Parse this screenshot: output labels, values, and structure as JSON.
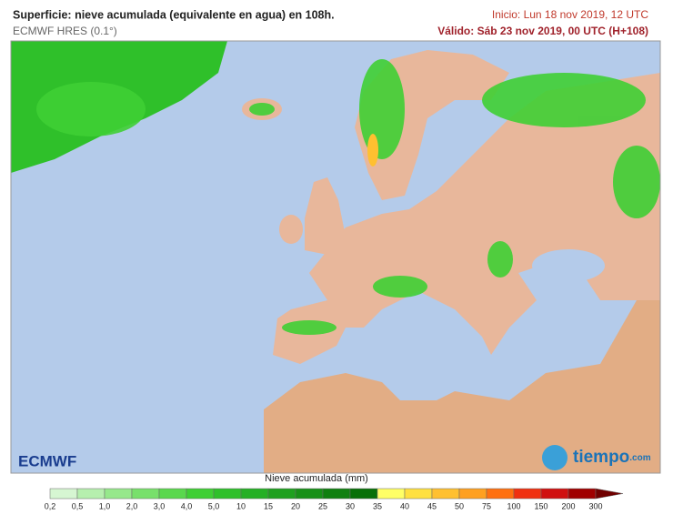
{
  "header": {
    "title": "Superficie: nieve acumulada (equivalente en agua) en 108h.",
    "model": "ECMWF HRES (0.1°)",
    "start": "Inicio: Lun 18 nov 2019, 12 UTC",
    "valid": "Válido: Sáb 23 nov 2019, 00 UTC (H+108)"
  },
  "logos": {
    "left": "ECMWF",
    "right": "tiempo",
    "right_suffix": ".com"
  },
  "legend": {
    "title": "Nieve acumulada (mm)",
    "labels": [
      "0,2",
      "0,5",
      "1,0",
      "2,0",
      "3,0",
      "4,0",
      "5,0",
      "10",
      "15",
      "20",
      "25",
      "30",
      "35",
      "40",
      "45",
      "50",
      "75",
      "100",
      "150",
      "200",
      "300"
    ],
    "colors": [
      "#d6f6d2",
      "#b6efae",
      "#96e88b",
      "#78e06b",
      "#5ad84d",
      "#3fcf34",
      "#2fc02a",
      "#25b025",
      "#1fa01f",
      "#189018",
      "#108010",
      "#087008",
      "#ffff66",
      "#ffe040",
      "#ffc030",
      "#ffa020",
      "#ff7010",
      "#f03010",
      "#d01010",
      "#a00000",
      "#700000"
    ]
  }
}
